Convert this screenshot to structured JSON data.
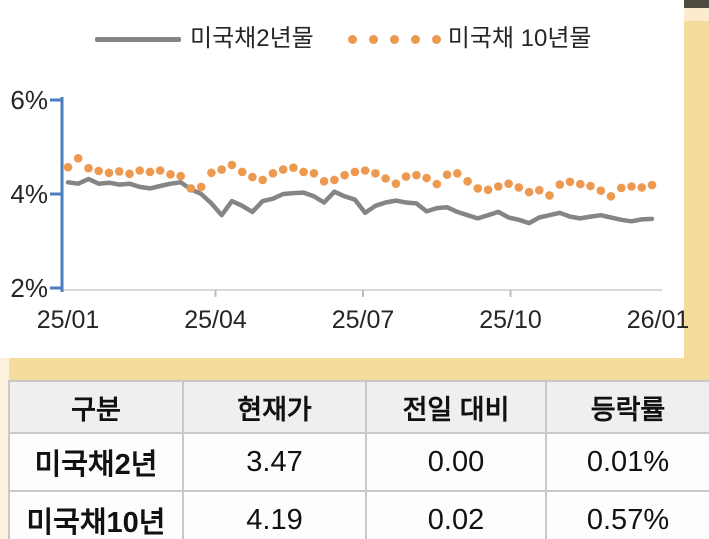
{
  "legend": {
    "series1_label": "미국채2년물",
    "series2_label": "미국채 10년물"
  },
  "chart_data": {
    "type": "line",
    "title": "",
    "xlabel": "",
    "ylabel": "",
    "ylim": [
      2,
      6
    ],
    "y_ticks": [
      "6%",
      "4%",
      "2%"
    ],
    "y_tick_values": [
      6,
      4,
      2
    ],
    "x_ticks": [
      "25/01",
      "25/04",
      "25/07",
      "25/10",
      "26/01"
    ],
    "grid": false,
    "legend_position": "top",
    "series": [
      {
        "name": "미국채2년물",
        "style": "line",
        "color": "#858585",
        "values": [
          4.25,
          4.22,
          4.32,
          4.22,
          4.24,
          4.2,
          4.22,
          4.15,
          4.12,
          4.17,
          4.22,
          4.25,
          4.1,
          4.0,
          3.8,
          3.55,
          3.85,
          3.75,
          3.62,
          3.85,
          3.9,
          4.0,
          4.02,
          4.03,
          3.95,
          3.82,
          4.05,
          3.95,
          3.88,
          3.6,
          3.75,
          3.82,
          3.86,
          3.82,
          3.8,
          3.63,
          3.7,
          3.72,
          3.62,
          3.55,
          3.48,
          3.55,
          3.62,
          3.5,
          3.45,
          3.38,
          3.5,
          3.55,
          3.6,
          3.52,
          3.48,
          3.52,
          3.55,
          3.5,
          3.45,
          3.42,
          3.46,
          3.47
        ]
      },
      {
        "name": "미국채 10년물",
        "style": "dots",
        "color": "#ED9950",
        "values": [
          4.57,
          4.76,
          4.55,
          4.49,
          4.45,
          4.48,
          4.43,
          4.5,
          4.47,
          4.5,
          4.42,
          4.38,
          4.12,
          4.15,
          4.45,
          4.52,
          4.62,
          4.47,
          4.36,
          4.3,
          4.44,
          4.52,
          4.56,
          4.47,
          4.44,
          4.27,
          4.3,
          4.4,
          4.47,
          4.5,
          4.44,
          4.33,
          4.22,
          4.37,
          4.4,
          4.34,
          4.21,
          4.41,
          4.44,
          4.27,
          4.12,
          4.09,
          4.16,
          4.22,
          4.14,
          4.04,
          4.08,
          3.97,
          4.2,
          4.26,
          4.21,
          4.17,
          4.07,
          3.95,
          4.13,
          4.16,
          4.14,
          4.19
        ]
      }
    ]
  },
  "table": {
    "headers": [
      "구분",
      "현재가",
      "전일 대비",
      "등락률"
    ],
    "rows": [
      {
        "label": "미국채2년",
        "values": [
          "3.47",
          "0.00",
          "0.01%"
        ]
      },
      {
        "label": "미국채10년",
        "values": [
          "4.19",
          "0.02",
          "0.57%"
        ]
      }
    ]
  },
  "colors": {
    "series_2y": "#858585",
    "series_10y": "#ED9950",
    "y_axis": "#4A7EBF",
    "x_axis_line": "#D9D9D9",
    "x_axis_tick": "#BFBFBF",
    "tan_strip": "#F5DB9E",
    "cream_strip": "#FDEBD0",
    "cream_strip_left": "#FCF1DB",
    "dark_bar": "#4F4B40",
    "table_header_bg": "#EFEFEF",
    "table_border": "#C9C9C9"
  }
}
